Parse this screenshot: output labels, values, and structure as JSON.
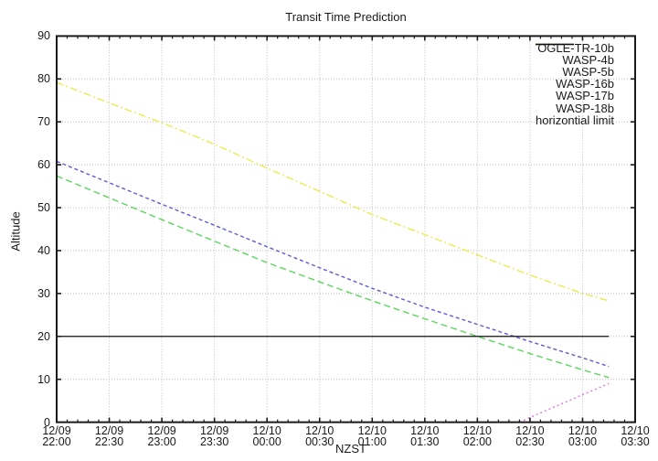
{
  "title": "Transit Time Prediction",
  "axes": {
    "x_label": "NZST",
    "y_label": "Altitude",
    "y_ticks": [
      0,
      10,
      20,
      30,
      40,
      50,
      60,
      70,
      80,
      90
    ],
    "x_ticks": [
      {
        "date": "12/09",
        "time": "22:00"
      },
      {
        "date": "12/09",
        "time": "22:30"
      },
      {
        "date": "12/09",
        "time": "23:00"
      },
      {
        "date": "12/09",
        "time": "23:30"
      },
      {
        "date": "12/10",
        "time": "00:00"
      },
      {
        "date": "12/10",
        "time": "00:30"
      },
      {
        "date": "12/10",
        "time": "01:00"
      },
      {
        "date": "12/10",
        "time": "01:30"
      },
      {
        "date": "12/10",
        "time": "02:00"
      },
      {
        "date": "12/10",
        "time": "02:30"
      },
      {
        "date": "12/10",
        "time": "03:00"
      },
      {
        "date": "12/10",
        "time": "03:30"
      }
    ]
  },
  "colors": {
    "grid": "#bcbcbc",
    "axis": "#1a1a1a",
    "background": "#ffffff"
  },
  "chart_data": {
    "type": "line",
    "title": "Transit Time Prediction",
    "xlabel": "NZST",
    "ylabel": "Altitude",
    "ylim": [
      0,
      90
    ],
    "x_range_labels": [
      "12/09 22:00",
      "12/10 03:30"
    ],
    "x_total_minutes": 330,
    "grid": true,
    "legend_position": "top-right-inside",
    "series": [
      {
        "name": "OGLE-TR-10b",
        "color": "#ff5c5c",
        "style": "solid",
        "x_minutes": [],
        "altitude": [],
        "visible_in_window": false
      },
      {
        "name": "WASP-4b",
        "color": "#5cd65c",
        "style": "dashed",
        "x_minutes": [
          0,
          30,
          60,
          90,
          120,
          150,
          180,
          210,
          240,
          270,
          300,
          315
        ],
        "altitude": [
          57.4,
          52.3,
          47.2,
          42.2,
          37.2,
          32.7,
          28.3,
          24.1,
          20.0,
          16.0,
          12.2,
          10.4
        ],
        "visible_in_window": true
      },
      {
        "name": "WASP-5b",
        "color": "#5c5cd6",
        "style": "shortdash",
        "x_minutes": [
          0,
          30,
          60,
          90,
          120,
          150,
          180,
          210,
          240,
          270,
          300,
          315
        ],
        "altitude": [
          60.8,
          55.8,
          50.8,
          45.9,
          40.9,
          36.0,
          31.2,
          26.8,
          22.8,
          18.8,
          15.0,
          13.0
        ],
        "visible_in_window": true
      },
      {
        "name": "WASP-16b",
        "color": "#d97bd9",
        "style": "dotted",
        "x_minutes": [
          264,
          270,
          300,
          315
        ],
        "altitude": [
          0,
          1.1,
          6.4,
          9.0
        ],
        "visible_in_window": true
      },
      {
        "name": "WASP-17b",
        "color": "#5cd0d0",
        "style": "dashdot",
        "x_minutes": [],
        "altitude": [],
        "visible_in_window": false
      },
      {
        "name": "WASP-18b",
        "color": "#ebeb50",
        "style": "dashdot",
        "x_minutes": [
          0,
          30,
          60,
          90,
          120,
          150,
          180,
          210,
          240,
          270,
          300,
          315
        ],
        "altitude": [
          79.2,
          74.4,
          69.8,
          64.8,
          59.2,
          53.8,
          48.4,
          43.7,
          39.0,
          34.3,
          30.0,
          28.3
        ],
        "visible_in_window": true
      },
      {
        "name": "horizontial limit",
        "color": "#111111",
        "style": "solid",
        "x_minutes": [
          0,
          315
        ],
        "altitude": [
          20,
          20
        ],
        "visible_in_window": true
      }
    ]
  }
}
